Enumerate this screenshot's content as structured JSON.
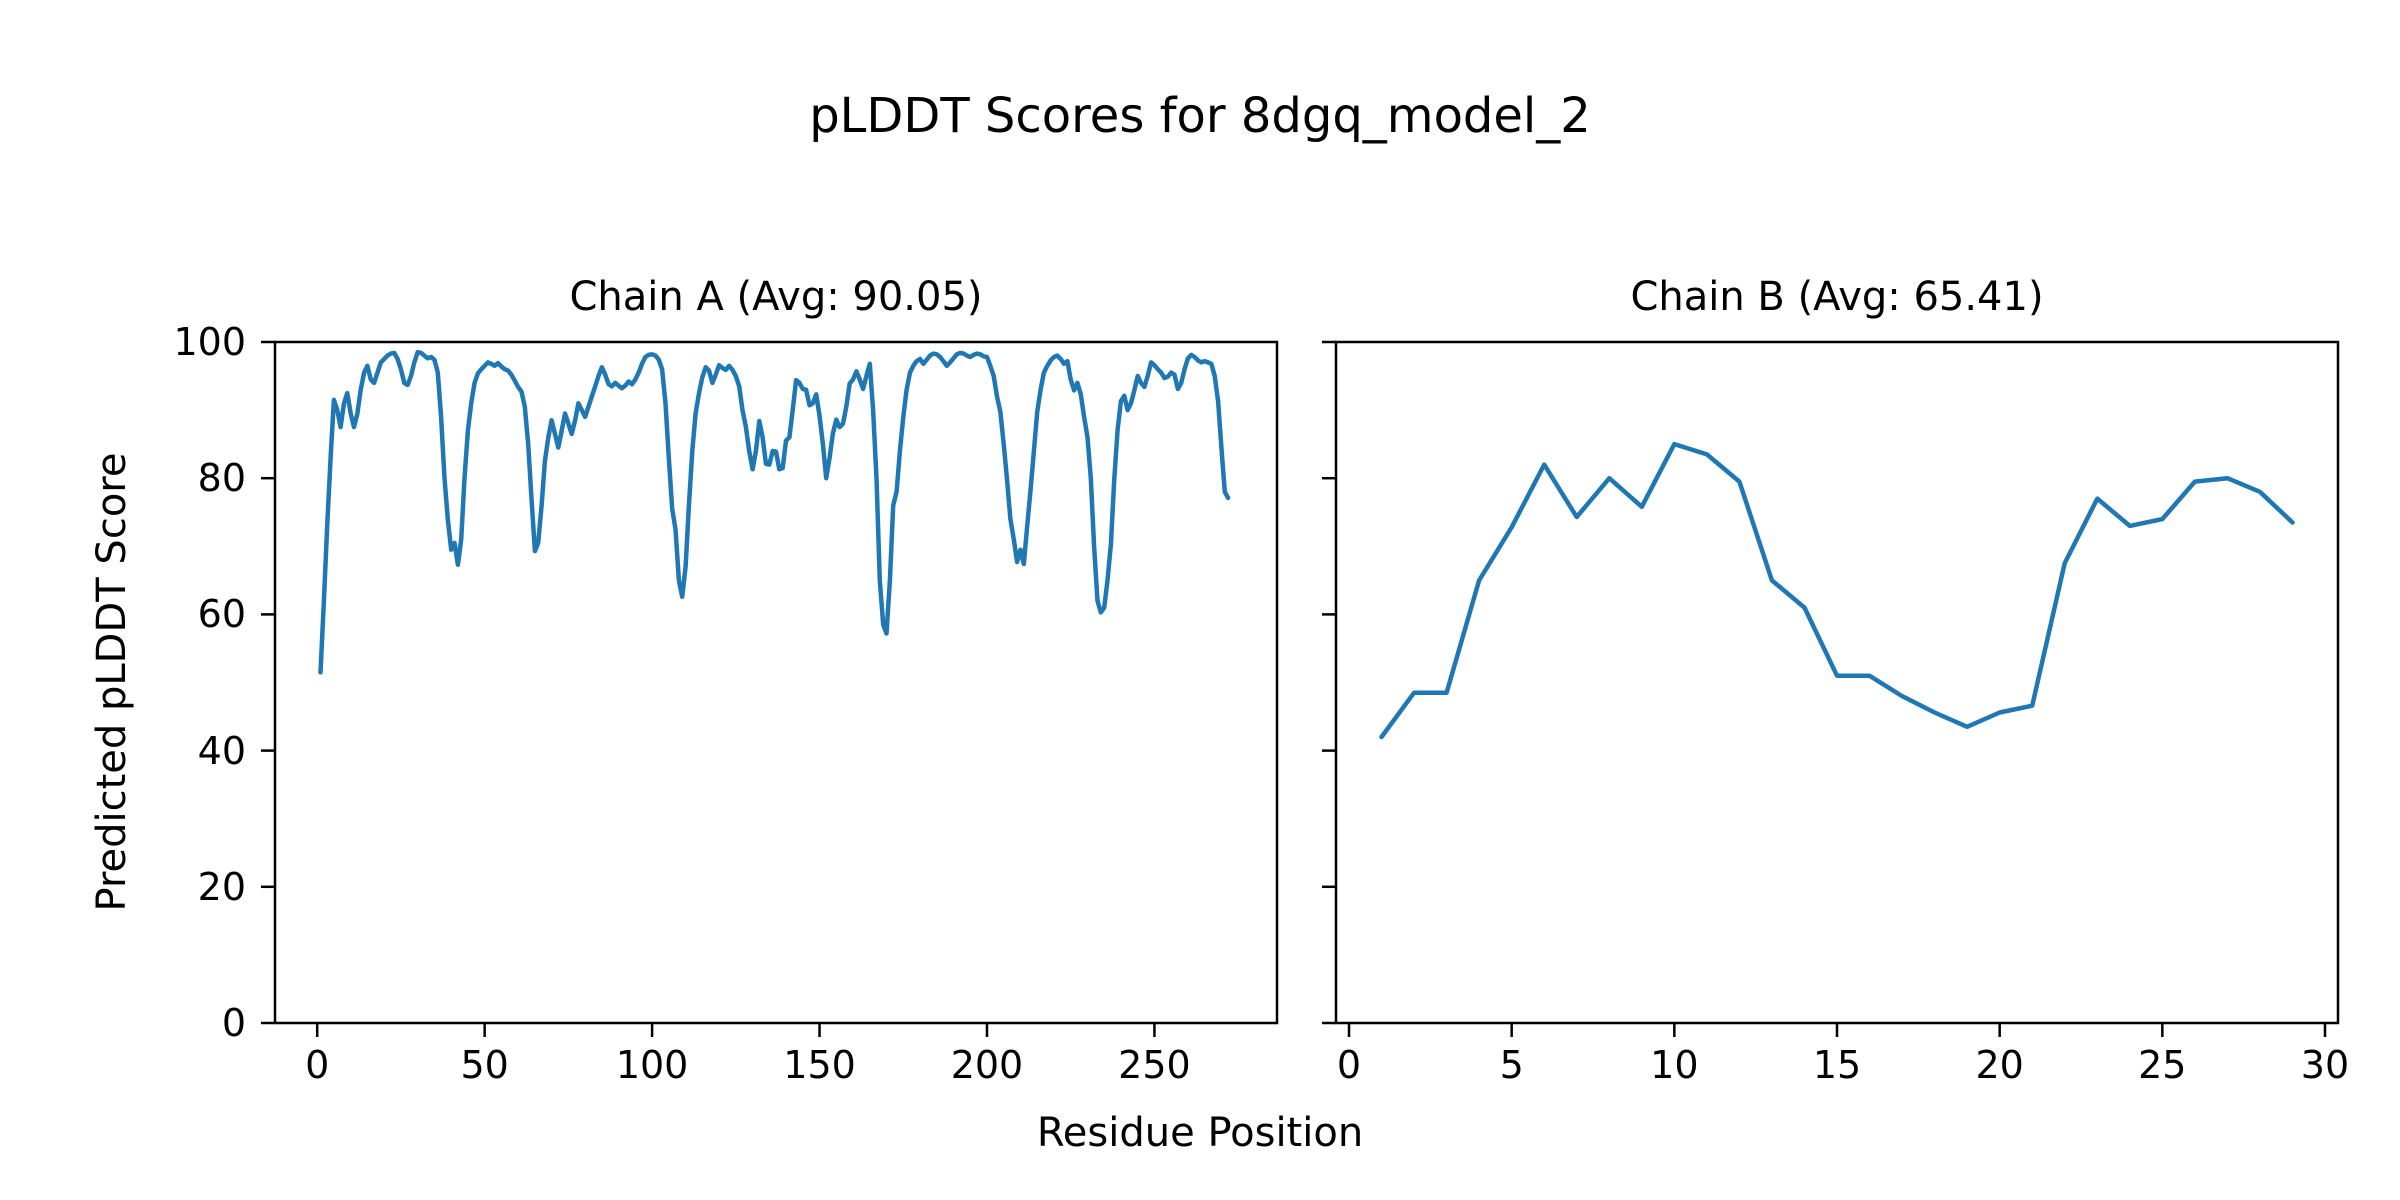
{
  "figure": {
    "title": "pLDDT Scores for 8dgq_model_2",
    "xlabel": "Residue Position",
    "ylabel": "Predicted pLDDT Score",
    "line_color": "#1f77b4",
    "axis_color": "#000000",
    "background": "#ffffff"
  },
  "chart_data": [
    {
      "type": "line",
      "title": "Chain A (Avg: 90.05)",
      "chain": "A",
      "avg": 90.05,
      "x_start": 1,
      "xlim": [
        -12.6,
        286.6
      ],
      "ylim": [
        0,
        100
      ],
      "xticks": [
        0,
        50,
        100,
        150,
        200,
        250
      ],
      "yticks": [
        0,
        20,
        40,
        60,
        80,
        100
      ],
      "show_ytick_labels": true,
      "grid": false,
      "values": [
        51.5,
        62,
        73,
        83,
        91.5,
        90,
        87.5,
        91,
        92.5,
        89.5,
        87.5,
        89.5,
        93,
        95.5,
        96.5,
        94.5,
        94,
        95.5,
        97,
        97.5,
        98,
        98.3,
        98.4,
        97.5,
        96,
        94,
        93.7,
        95,
        97,
        98.5,
        98.4,
        98,
        97.6,
        97.8,
        97.4,
        95.5,
        89,
        80,
        74,
        69.5,
        70.5,
        67.3,
        71,
        80,
        87,
        91,
        94,
        95.4,
        96,
        96.5,
        97,
        96.8,
        96.5,
        96.9,
        96.4,
        96,
        95.8,
        95.2,
        94.3,
        93.4,
        92.7,
        90.5,
        85,
        77,
        69.3,
        70.5,
        76,
        82.5,
        86,
        88.5,
        86.5,
        84.5,
        87,
        89.5,
        88,
        86.5,
        88.5,
        91,
        90,
        89,
        90.5,
        92,
        93.5,
        95,
        96.3,
        95.2,
        93.8,
        93.5,
        94,
        93.6,
        93.2,
        93.6,
        94.2,
        93.8,
        94.5,
        95.5,
        96.8,
        97.8,
        98.1,
        98.2,
        98,
        97.4,
        96,
        91,
        83,
        75.5,
        72.5,
        65,
        62.6,
        67,
        76,
        84,
        89.5,
        92.5,
        94.8,
        96.3,
        95.8,
        94,
        95.2,
        96.6,
        96.2,
        95.9,
        96.5,
        95.9,
        95,
        93.5,
        90,
        87.5,
        84,
        81.3,
        84,
        88.4,
        86,
        82.1,
        82,
        84,
        83.9,
        81.3,
        81.5,
        85.5,
        86,
        90,
        94.4,
        94,
        93.1,
        93,
        90.7,
        91,
        92.3,
        89.2,
        85,
        80,
        83,
        86.6,
        88.6,
        87.5,
        88,
        90.5,
        93.9,
        94.5,
        95.7,
        94.5,
        93.1,
        95,
        96.8,
        90,
        80,
        65,
        58.5,
        57.2,
        65,
        76,
        78,
        84,
        89,
        93,
        95.5,
        96.5,
        97.2,
        97.5,
        96.8,
        97.4,
        98,
        98.3,
        98.2,
        97.8,
        97.2,
        96.5,
        97,
        97.6,
        98.2,
        98.4,
        98.3,
        98,
        97.8,
        98.1,
        98.3,
        98.2,
        97.9,
        97.8,
        96.5,
        95,
        92,
        89.7,
        85,
        79.7,
        74,
        71,
        67.7,
        69.5,
        67.4,
        73,
        78.2,
        84,
        89.7,
        93,
        95.5,
        96.5,
        97.3,
        97.8,
        98,
        97.5,
        96.8,
        97.2,
        94.5,
        92.9,
        94,
        92.3,
        89,
        86,
        80,
        70,
        62,
        60.3,
        61,
        65,
        70.3,
        79.7,
        87.1,
        91.3,
        92.1,
        90,
        91,
        92.9,
        95,
        94,
        93.4,
        95,
        97,
        96.6,
        96,
        95.5,
        94.7,
        94.9,
        95.5,
        95.2,
        93.1,
        94,
        96,
        97.6,
        98.1,
        97.8,
        97.3,
        97,
        97.2,
        97,
        96.8,
        95,
        91.3,
        84.5,
        78,
        77.1
      ]
    },
    {
      "type": "line",
      "title": "Chain B (Avg: 65.41)",
      "chain": "B",
      "avg": 65.41,
      "x_start": 1,
      "xlim": [
        -0.4,
        30.4
      ],
      "ylim": [
        0,
        100
      ],
      "xticks": [
        0,
        5,
        10,
        15,
        20,
        25,
        30
      ],
      "yticks": [
        0,
        20,
        40,
        60,
        80,
        100
      ],
      "show_ytick_labels": false,
      "grid": false,
      "values": [
        42,
        48.5,
        48.5,
        65,
        72.8,
        82,
        74.3,
        80,
        75.8,
        85,
        83.5,
        79.5,
        65,
        61,
        51,
        51,
        48,
        45.6,
        43.5,
        45.6,
        46.6,
        67.5,
        77,
        73,
        74,
        79.5,
        80,
        78,
        73.5
      ]
    }
  ]
}
